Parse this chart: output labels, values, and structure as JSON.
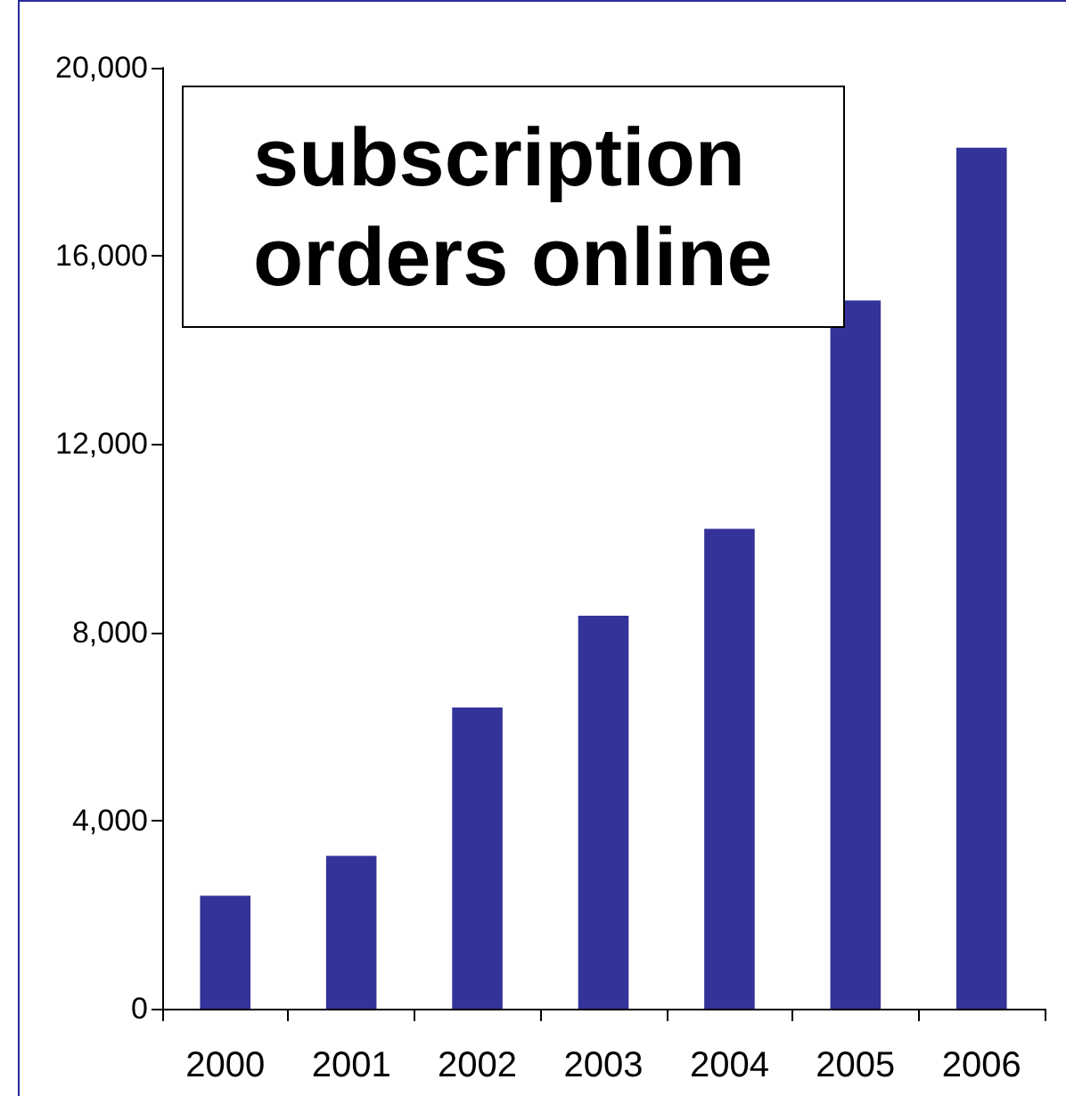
{
  "chart_data": {
    "type": "bar",
    "title": "subscription\norders online",
    "categories": [
      "2000",
      "2001",
      "2002",
      "2003",
      "2004",
      "2005",
      "2006"
    ],
    "values": [
      2400,
      3250,
      6400,
      8350,
      10200,
      15050,
      18300
    ],
    "color": "#333399",
    "ylim": [
      0,
      20000
    ],
    "yticks": [
      {
        "value": 0,
        "label": "0"
      },
      {
        "value": 4000,
        "label": "4,000"
      },
      {
        "value": 8000,
        "label": "8,000"
      },
      {
        "value": 12000,
        "label": "12,000"
      },
      {
        "value": 16000,
        "label": "16,000"
      },
      {
        "value": 20000,
        "label": "20,000"
      }
    ],
    "grid": false
  }
}
